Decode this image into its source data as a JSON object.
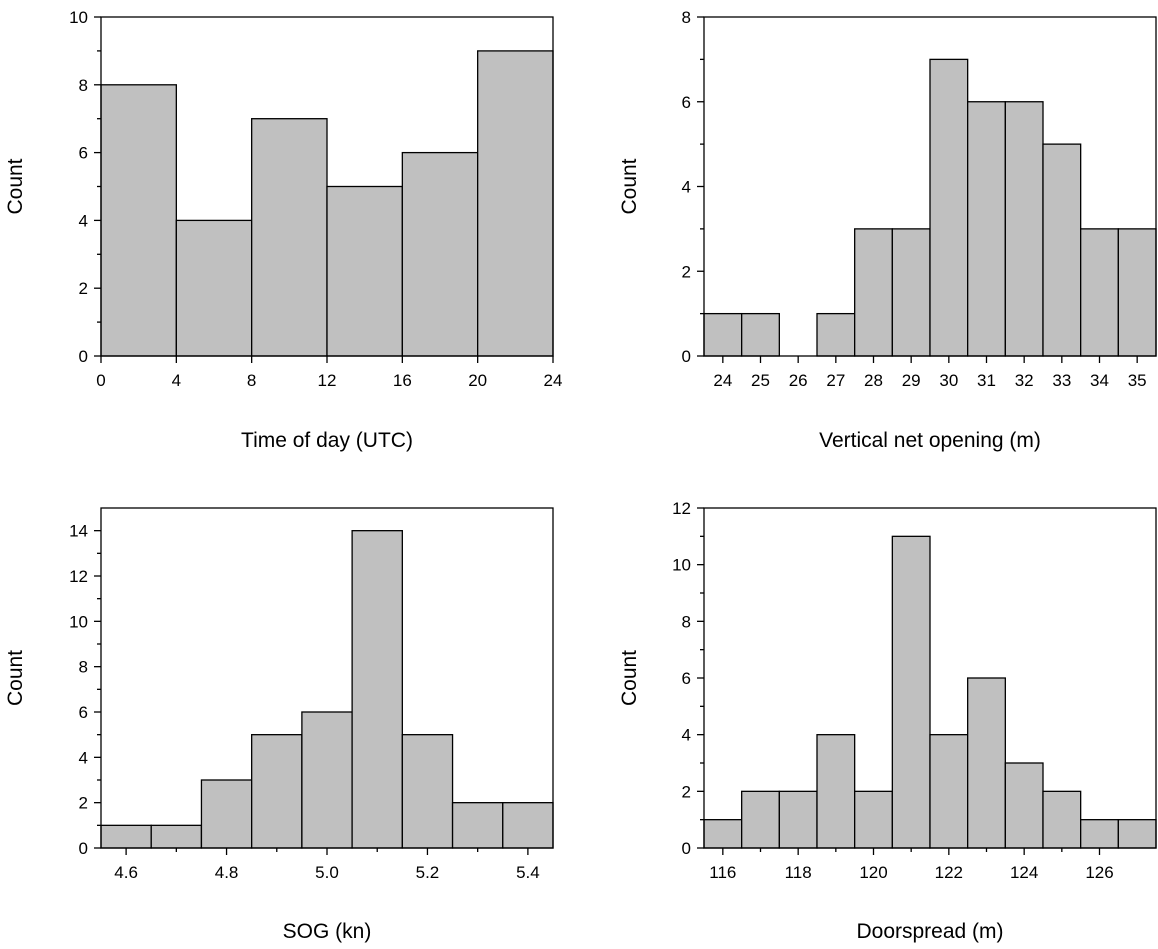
{
  "chart_data": [
    {
      "type": "bar",
      "xlabel": "Time of day (UTC)",
      "ylabel": "Count",
      "ylim": [
        0,
        10
      ],
      "y_ticks": [
        0,
        2,
        4,
        6,
        8,
        10
      ],
      "x_ticks": [
        0,
        4,
        8,
        12,
        16,
        20,
        24
      ],
      "x_tick_labels": [
        "0",
        "4",
        "8",
        "12",
        "16",
        "20",
        "24"
      ],
      "xlim": [
        0,
        24
      ],
      "bins": [
        [
          0,
          4
        ],
        [
          4,
          8
        ],
        [
          8,
          12
        ],
        [
          12,
          16
        ],
        [
          16,
          20
        ],
        [
          20,
          24
        ]
      ],
      "values": [
        8,
        4,
        7,
        5,
        6,
        9
      ]
    },
    {
      "type": "bar",
      "xlabel": "Vertical net opening (m)",
      "ylabel": "Count",
      "ylim": [
        0,
        8
      ],
      "y_ticks": [
        0,
        2,
        4,
        6,
        8
      ],
      "x_ticks": [
        24,
        25,
        26,
        27,
        28,
        29,
        30,
        31,
        32,
        33,
        34,
        35
      ],
      "x_tick_labels": [
        "24",
        "25",
        "26",
        "27",
        "28",
        "29",
        "30",
        "31",
        "32",
        "33",
        "34",
        "35"
      ],
      "xlim": [
        23.5,
        35.5
      ],
      "bins": [
        [
          23.5,
          24.5
        ],
        [
          24.5,
          25.5
        ],
        [
          25.5,
          26.5
        ],
        [
          26.5,
          27.5
        ],
        [
          27.5,
          28.5
        ],
        [
          28.5,
          29.5
        ],
        [
          29.5,
          30.5
        ],
        [
          30.5,
          31.5
        ],
        [
          31.5,
          32.5
        ],
        [
          32.5,
          33.5
        ],
        [
          33.5,
          34.5
        ],
        [
          34.5,
          35.5
        ]
      ],
      "values": [
        1,
        1,
        0,
        1,
        3,
        3,
        7,
        6,
        6,
        5,
        3,
        3
      ]
    },
    {
      "type": "bar",
      "xlabel": "SOG (kn)",
      "ylabel": "Count",
      "ylim": [
        0,
        15
      ],
      "y_ticks": [
        0,
        2,
        4,
        6,
        8,
        10,
        12,
        14
      ],
      "x_ticks": [
        4.6,
        4.8,
        5.0,
        5.2,
        5.4
      ],
      "x_tick_labels": [
        "4.6",
        "4.8",
        "5.0",
        "5.2",
        "5.4"
      ],
      "xlim": [
        4.55,
        5.45
      ],
      "bins": [
        [
          4.55,
          4.65
        ],
        [
          4.65,
          4.75
        ],
        [
          4.75,
          4.85
        ],
        [
          4.85,
          4.95
        ],
        [
          4.95,
          5.05
        ],
        [
          5.05,
          5.15
        ],
        [
          5.15,
          5.25
        ],
        [
          5.25,
          5.35
        ],
        [
          5.35,
          5.45
        ]
      ],
      "values": [
        1,
        1,
        3,
        5,
        6,
        14,
        5,
        2,
        2
      ]
    },
    {
      "type": "bar",
      "xlabel": "Doorspread (m)",
      "ylabel": "Count",
      "ylim": [
        0,
        12
      ],
      "y_ticks": [
        0,
        2,
        4,
        6,
        8,
        10,
        12
      ],
      "x_ticks": [
        116,
        118,
        120,
        122,
        124,
        126
      ],
      "x_tick_labels": [
        "116",
        "118",
        "120",
        "122",
        "124",
        "126"
      ],
      "xlim": [
        115.5,
        127.5
      ],
      "bins": [
        [
          115.5,
          116.5
        ],
        [
          116.5,
          117.5
        ],
        [
          117.5,
          118.5
        ],
        [
          118.5,
          119.5
        ],
        [
          119.5,
          120.5
        ],
        [
          120.5,
          121.5
        ],
        [
          121.5,
          122.5
        ],
        [
          122.5,
          123.5
        ],
        [
          123.5,
          124.5
        ],
        [
          124.5,
          125.5
        ],
        [
          125.5,
          126.5
        ],
        [
          126.5,
          127.5
        ]
      ],
      "values": [
        1,
        2,
        2,
        4,
        2,
        11,
        4,
        6,
        3,
        2,
        1,
        1
      ]
    }
  ]
}
